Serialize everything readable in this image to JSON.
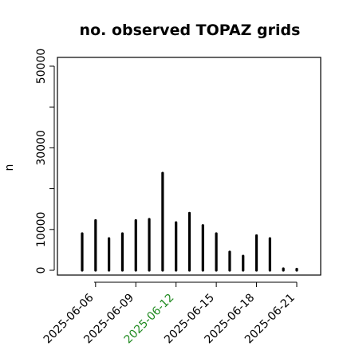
{
  "chart_data": {
    "type": "bar",
    "title": "no. observed TOPAZ grids",
    "xlabel": "",
    "ylabel": "n",
    "ylim": [
      0,
      50000
    ],
    "y_ticks": [
      0,
      10000,
      30000,
      50000
    ],
    "grid": false,
    "x_tick_labels": [
      "2025-06-06",
      "2025-06-09",
      "2025-06-12",
      "2025-06-15",
      "2025-06-18",
      "2025-06-21"
    ],
    "x_tick_colors": [
      "#000000",
      "#000000",
      "#228b22",
      "#000000",
      "#000000",
      "#000000"
    ],
    "bar_color": "#000000",
    "categories": [
      "2025-06-05",
      "2025-06-06",
      "2025-06-07",
      "2025-06-08",
      "2025-06-09",
      "2025-06-10",
      "2025-06-11",
      "2025-06-12",
      "2025-06-13",
      "2025-06-14",
      "2025-06-15",
      "2025-06-16",
      "2025-06-17",
      "2025-06-18",
      "2025-06-19",
      "2025-06-20",
      "2025-06-21"
    ],
    "values": [
      9000,
      12200,
      7800,
      9000,
      12200,
      12500,
      23800,
      11700,
      14000,
      11000,
      9000,
      4500,
      3500,
      8500,
      7800,
      400,
      300
    ]
  }
}
